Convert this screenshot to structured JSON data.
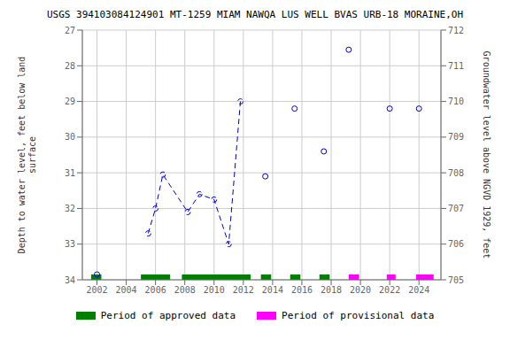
{
  "chart_data": {
    "type": "line",
    "title": "USGS 394103084124901 MT-1259 MIAM NAWQA LUS WELL BVAS URB-18 MORAINE,OH",
    "y_label": "Depth to water level, feet below land\nsurface",
    "y2_label": "Groundwater level above NGVD 1929, feet",
    "xlim": [
      2001.0,
      2025.5
    ],
    "xticks": [
      2002,
      2004,
      2006,
      2008,
      2010,
      2012,
      2014,
      2016,
      2018,
      2020,
      2022,
      2024
    ],
    "ylim": [
      34,
      27
    ],
    "yticks": [
      27,
      28,
      29,
      30,
      31,
      32,
      33,
      34
    ],
    "y2lim": [
      705,
      712
    ],
    "y2ticks": [
      705,
      706,
      707,
      708,
      709,
      710,
      711,
      712
    ],
    "grid": true,
    "legend": "bottom",
    "series": [
      {
        "type": "line",
        "color": "#0000cc",
        "line_style": "dashed",
        "marker": "circle",
        "x": [
          2005.5,
          2006.0,
          2006.5,
          2008.2,
          2009.0,
          2010.0,
          2011.0,
          2011.8
        ],
        "values": [
          32.7,
          32.0,
          31.05,
          32.1,
          31.6,
          31.75,
          33.0,
          29.0
        ]
      },
      {
        "type": "scatter",
        "color": "#0000cc",
        "marker": "circle",
        "x": [
          2002.0,
          2013.5,
          2015.5,
          2017.5,
          2019.2,
          2022.0,
          2024.0
        ],
        "values": [
          33.85,
          31.1,
          29.2,
          30.4,
          27.55,
          29.2,
          29.2
        ]
      },
      {
        "name": "Period of approved data",
        "type": "span",
        "color": "#008000",
        "spans": [
          [
            2001.6,
            2002.3
          ],
          [
            2005.0,
            2007.0
          ],
          [
            2007.8,
            2012.5
          ],
          [
            2013.2,
            2013.9
          ],
          [
            2015.2,
            2015.9
          ],
          [
            2017.2,
            2017.9
          ]
        ]
      },
      {
        "name": "Period of provisional data",
        "type": "span",
        "color": "#ff00ff",
        "spans": [
          [
            2019.2,
            2019.9
          ],
          [
            2021.8,
            2022.4
          ],
          [
            2023.8,
            2025.0
          ]
        ]
      }
    ]
  }
}
